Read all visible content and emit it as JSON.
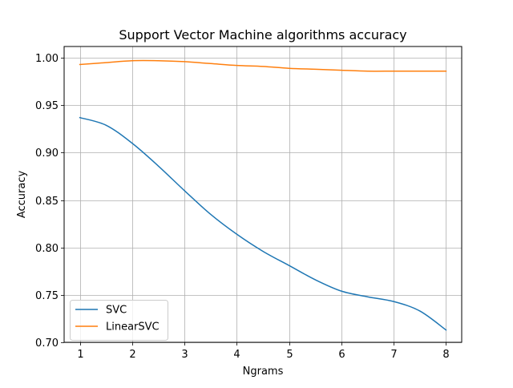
{
  "chart_data": {
    "type": "line",
    "title": "Support Vector Machine algorithms accuracy",
    "xlabel": "Ngrams",
    "ylabel": "Accuracy",
    "xlim": [
      0.7,
      8.3
    ],
    "ylim": [
      0.7,
      1.012
    ],
    "xticks": [
      1,
      2,
      3,
      4,
      5,
      6,
      7,
      8
    ],
    "xtick_labels": [
      "1",
      "2",
      "3",
      "4",
      "5",
      "6",
      "7",
      "8"
    ],
    "yticks": [
      0.7,
      0.75,
      0.8,
      0.85,
      0.9,
      0.95,
      1.0
    ],
    "ytick_labels": [
      "0.70",
      "0.75",
      "0.80",
      "0.85",
      "0.90",
      "0.95",
      "1.00"
    ],
    "grid": true,
    "legend_position": "lower-left",
    "series": [
      {
        "name": "SVC",
        "color": "#1f77b4",
        "x": [
          1,
          1.5,
          2,
          2.5,
          3,
          3.5,
          4,
          4.5,
          5,
          5.5,
          6,
          6.5,
          7,
          7.5,
          8
        ],
        "values": [
          0.937,
          0.929,
          0.91,
          0.886,
          0.86,
          0.835,
          0.814,
          0.796,
          0.781,
          0.766,
          0.754,
          0.748,
          0.743,
          0.733,
          0.713
        ]
      },
      {
        "name": "LinearSVC",
        "color": "#ff7f0e",
        "x": [
          1,
          1.5,
          2,
          2.5,
          3,
          3.5,
          4,
          4.5,
          5,
          5.5,
          6,
          6.5,
          7,
          7.5,
          8
        ],
        "values": [
          0.993,
          0.995,
          0.997,
          0.997,
          0.996,
          0.994,
          0.992,
          0.991,
          0.989,
          0.988,
          0.987,
          0.986,
          0.986,
          0.986,
          0.986
        ]
      }
    ]
  }
}
